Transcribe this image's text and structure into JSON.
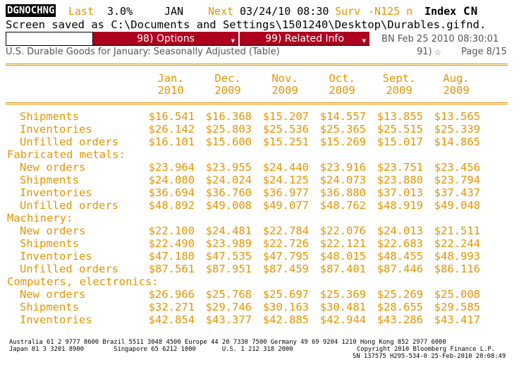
{
  "header": {
    "ticker": "DGNOCHNG",
    "last_label": "Last",
    "last_value": "3.0%",
    "period": "JAN",
    "next_label": "Next",
    "next_datetime": "03/24/10 08:30",
    "surv_label": "Surv",
    "surv_value": "-N125 n",
    "index_label": "Index",
    "country": "CN"
  },
  "status_message": "Screen saved as C:\\Documents and Settings\\1501240\\Desktop\\Durables.gifnd.",
  "toolbar": {
    "command_value": "",
    "options_button": "98) Options",
    "related_button": "99) Related Info",
    "timestamp": "BN Feb 25 2010 08:30:01"
  },
  "page": {
    "subtitle": "U.S. Durable Goods for January: Seasonally Adjusted (Table)",
    "story_number": "91)",
    "page_info": "Page 8/15"
  },
  "table": {
    "columns": [
      {
        "month": "Jan.",
        "year": "2010"
      },
      {
        "month": "Dec.",
        "year": "2009"
      },
      {
        "month": "Nov.",
        "year": "2009"
      },
      {
        "month": "Oct.",
        "year": "2009"
      },
      {
        "month": "Sept.",
        "year": "2009"
      },
      {
        "month": "Aug.",
        "year": "2009"
      }
    ],
    "rows": [
      {
        "label": "Shipments",
        "values": [
          "$16.541",
          "$16.368",
          "$15.207",
          "$14.557",
          "$13.855",
          "$13.565"
        ]
      },
      {
        "label": "Inventories",
        "values": [
          "$26.142",
          "$25.803",
          "$25.536",
          "$25.365",
          "$25.515",
          "$25.339"
        ]
      },
      {
        "label": "Unfilled orders",
        "values": [
          "$16.101",
          "$15.600",
          "$15.251",
          "$15.269",
          "$15.017",
          "$14.865"
        ]
      },
      {
        "section": "Fabricated metals:"
      },
      {
        "label": "New orders",
        "values": [
          "$23.964",
          "$23.955",
          "$24.440",
          "$23.916",
          "$23.751",
          "$23.456"
        ]
      },
      {
        "label": "Shipments",
        "values": [
          "$24.080",
          "$24.024",
          "$24.125",
          "$24.073",
          "$23.880",
          "$23.794"
        ]
      },
      {
        "label": "Inventories",
        "values": [
          "$36.694",
          "$36.760",
          "$36.977",
          "$36.880",
          "$37.013",
          "$37.437"
        ]
      },
      {
        "label": "Unfilled orders",
        "values": [
          "$48.892",
          "$49.008",
          "$49.077",
          "$48.762",
          "$48.919",
          "$49.048"
        ]
      },
      {
        "section": "Machinery:"
      },
      {
        "label": "New orders",
        "values": [
          "$22.100",
          "$24.481",
          "$22.784",
          "$22.076",
          "$24.013",
          "$21.511"
        ]
      },
      {
        "label": "Shipments",
        "values": [
          "$22.490",
          "$23.989",
          "$22.726",
          "$22.121",
          "$22.683",
          "$22.244"
        ]
      },
      {
        "label": "Inventories",
        "values": [
          "$47.180",
          "$47.535",
          "$47.795",
          "$48.015",
          "$48.455",
          "$48.993"
        ]
      },
      {
        "label": "Unfilled orders",
        "values": [
          "$87.561",
          "$87.951",
          "$87.459",
          "$87.401",
          "$87.446",
          "$86.116"
        ]
      },
      {
        "section": "Computers, electronics:"
      },
      {
        "label": "New orders",
        "values": [
          "$26.966",
          "$25.768",
          "$25.697",
          "$25.369",
          "$25.269",
          "$25.008"
        ]
      },
      {
        "label": "Shipments",
        "values": [
          "$32.271",
          "$29.746",
          "$30.163",
          "$30.481",
          "$28.655",
          "$29.585"
        ]
      },
      {
        "label": "Inventories",
        "values": [
          "$42.854",
          "$43.377",
          "$42.885",
          "$42.944",
          "$43.286",
          "$43.417"
        ]
      }
    ]
  },
  "footer": {
    "line1": "Australia 61 2 9777 8600 Brazil 5511 3048 4500 Europe 44 20 7330 7500 Germany 49 69 9204 1210 Hong Kong 852 2977 6000",
    "line2_left": "Japan 81 3 3201 8900        Singapore 65 6212 1000       U.S. 1 212 318 2000",
    "line2_right": "Copyright 2010 Bloomberg Finance L.P.",
    "line3": "SN 137575 H295-534-0 25-Feb-2010 20:08:49"
  },
  "colors": {
    "accent_orange": "#e49500",
    "button_red": "#b00020"
  }
}
